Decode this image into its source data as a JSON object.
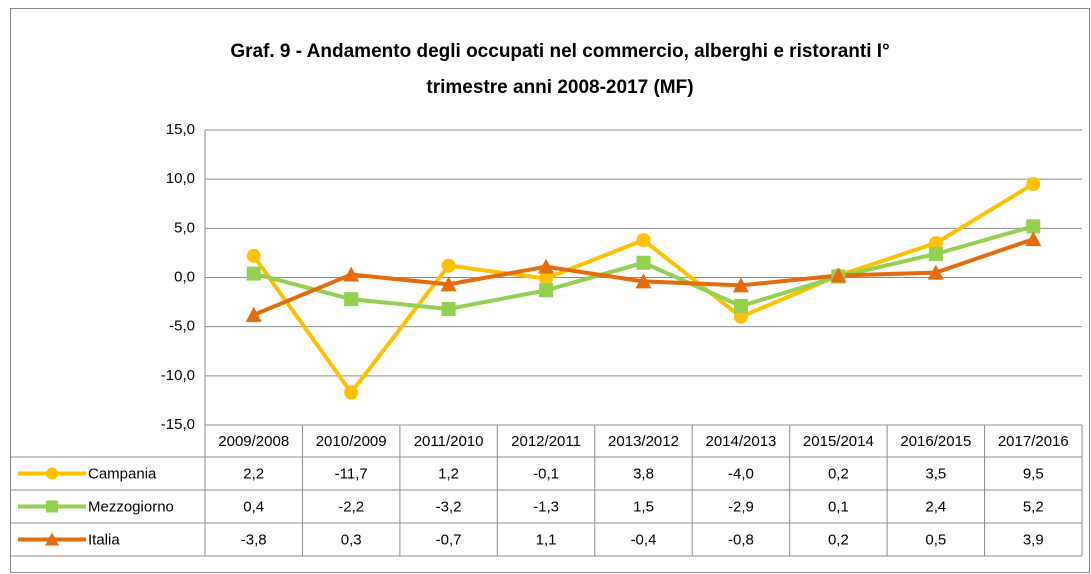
{
  "chart_data": {
    "type": "line",
    "title": [
      "Graf. 9 - Andamento degli occupati nel commercio, alberghi e ristoranti I°",
      "trimestre anni 2008-2017 (MF)"
    ],
    "categories": [
      "2009/2008",
      "2010/2009",
      "2011/2010",
      "2012/2011",
      "2013/2012",
      "2014/2013",
      "2015/2014",
      "2016/2015",
      "2017/2016"
    ],
    "series": [
      {
        "name": "Campania",
        "color": "#FFC000",
        "marker": "circle",
        "values": [
          2.2,
          -11.7,
          1.2,
          -0.1,
          3.8,
          -4.0,
          0.2,
          3.5,
          9.5
        ],
        "value_labels": [
          "2,2",
          "-11,7",
          "1,2",
          "-0,1",
          "3,8",
          "-4,0",
          "0,2",
          "3,5",
          "9,5"
        ]
      },
      {
        "name": "Mezzogiorno",
        "color": "#92D050",
        "marker": "square",
        "values": [
          0.4,
          -2.2,
          -3.2,
          -1.3,
          1.5,
          -2.9,
          0.1,
          2.4,
          5.2
        ],
        "value_labels": [
          "0,4",
          "-2,2",
          "-3,2",
          "-1,3",
          "1,5",
          "-2,9",
          "0,1",
          "2,4",
          "5,2"
        ]
      },
      {
        "name": "Italia",
        "color": "#E46C0A",
        "marker": "triangle",
        "values": [
          -3.8,
          0.3,
          -0.7,
          1.1,
          -0.4,
          -0.8,
          0.2,
          0.5,
          3.9
        ],
        "value_labels": [
          "-3,8",
          "0,3",
          "-0,7",
          "1,1",
          "-0,4",
          "-0,8",
          "0,2",
          "0,5",
          "3,9"
        ]
      }
    ],
    "ylim": [
      -15,
      15
    ],
    "yticks": [
      {
        "value": -15,
        "label": "-15,0"
      },
      {
        "value": -10,
        "label": "-10,0"
      },
      {
        "value": -5,
        "label": "-5,0"
      },
      {
        "value": 0,
        "label": "0,0"
      },
      {
        "value": 5,
        "label": "5,0"
      },
      {
        "value": 10,
        "label": "10,0"
      },
      {
        "value": 15,
        "label": "15,0"
      }
    ],
    "grid": true,
    "data_table": true
  }
}
